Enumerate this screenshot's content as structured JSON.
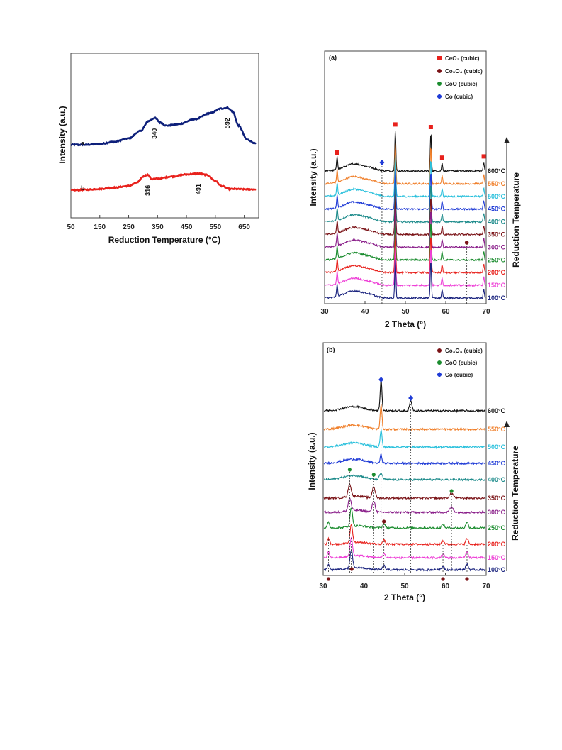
{
  "chart_data": [
    {
      "type": "line",
      "panel": "tpr",
      "xlabel": "Reduction Temperature (°C)",
      "ylabel": "Intensity (a.u.)",
      "xlim": [
        50,
        700
      ],
      "x_ticks": [
        "50",
        "150",
        "250",
        "350",
        "450",
        "550",
        "650"
      ],
      "x_tick_values": [
        50,
        150,
        250,
        350,
        450,
        550,
        650
      ],
      "series": [
        {
          "name": "a",
          "color": "#0d1f7a",
          "x": [
            50,
            100,
            150,
            200,
            250,
            290,
            320,
            340,
            360,
            380,
            420,
            480,
            530,
            570,
            592,
            610,
            630,
            660,
            690
          ],
          "y": [
            0.1,
            0.1,
            0.12,
            0.17,
            0.25,
            0.42,
            0.66,
            0.73,
            0.62,
            0.55,
            0.58,
            0.7,
            0.84,
            0.95,
            0.97,
            0.88,
            0.55,
            0.22,
            0.13
          ],
          "peaks": [
            {
              "x": 340,
              "label": "340"
            },
            {
              "x": 592,
              "label": "592"
            }
          ]
        },
        {
          "name": "b",
          "color": "#e8211c",
          "x": [
            50,
            100,
            150,
            200,
            250,
            280,
            300,
            316,
            330,
            350,
            400,
            450,
            491,
            520,
            550,
            570,
            600,
            650,
            690
          ],
          "y": [
            -0.1,
            -0.09,
            -0.07,
            -0.04,
            0.0,
            0.08,
            0.22,
            0.26,
            0.16,
            0.17,
            0.22,
            0.27,
            0.29,
            0.26,
            0.12,
            0.0,
            -0.07,
            -0.08,
            -0.08
          ],
          "peaks": [
            {
              "x": 316,
              "label": "316"
            },
            {
              "x": 491,
              "label": "491"
            }
          ]
        }
      ]
    },
    {
      "type": "line",
      "panel": "(a)",
      "xlabel": "2 Theta (°)",
      "ylabel": "Intensity (a.u.)",
      "right_label": "Reduction Temperature",
      "xlim": [
        30,
        70
      ],
      "x_ticks": [
        "30",
        "40",
        "50",
        "60",
        "70"
      ],
      "x_tick_values": [
        30,
        40,
        50,
        60,
        70
      ],
      "legend": [
        {
          "label": "CeO₂ (cubic)",
          "color": "#e8211c",
          "shape": "square"
        },
        {
          "label": "Co₃O₄ (cubic)",
          "color": "#7a1216",
          "shape": "circle"
        },
        {
          "label": "CoO (cubic)",
          "color": "#1a8c2e",
          "shape": "circle"
        },
        {
          "label": "Co (cubic)",
          "color": "#1f3bd6",
          "shape": "diamond"
        }
      ],
      "ceo2_peaks_2theta": [
        33.1,
        47.5,
        56.3,
        59.1,
        69.4
      ],
      "ceo2_peak_heights": [
        0.5,
        1.6,
        1.5,
        0.3,
        0.35
      ],
      "dashed_markers": [
        {
          "x": 44.2,
          "symbol": "diamond",
          "color": "#1f3bd6"
        },
        {
          "x": 65.2,
          "symbol": "circle",
          "color": "#7a1216"
        }
      ],
      "series": [
        {
          "name": "600°C",
          "color": "#111111"
        },
        {
          "name": "550°C",
          "color": "#f07f2a"
        },
        {
          "name": "500°C",
          "color": "#29c0dc"
        },
        {
          "name": "450°C",
          "color": "#1f3bd6"
        },
        {
          "name": "400°C",
          "color": "#1b8a8a"
        },
        {
          "name": "350°C",
          "color": "#7a1216"
        },
        {
          "name": "300°C",
          "color": "#8a1f8a"
        },
        {
          "name": "250°C",
          "color": "#1a8c2e"
        },
        {
          "name": "200°C",
          "color": "#e8211c"
        },
        {
          "name": "150°C",
          "color": "#ee3fd6"
        },
        {
          "name": "100°C",
          "color": "#1a237e"
        }
      ]
    },
    {
      "type": "line",
      "panel": "(b)",
      "xlabel": "2 Theta (°)",
      "ylabel": "Intensity (a.u.)",
      "right_label": "Reduction Temperature",
      "xlim": [
        30,
        70
      ],
      "x_ticks": [
        "30",
        "40",
        "50",
        "60",
        "70"
      ],
      "x_tick_values": [
        30,
        40,
        50,
        60,
        70
      ],
      "legend": [
        {
          "label": "Co₃O₄ (cubic)",
          "color": "#7a1216",
          "shape": "circle"
        },
        {
          "label": "CoO (cubic)",
          "color": "#1a8c2e",
          "shape": "circle"
        },
        {
          "label": "Co (cubic)",
          "color": "#1f3bd6",
          "shape": "diamond"
        }
      ],
      "series": [
        {
          "name": "600°C",
          "color": "#111111"
        },
        {
          "name": "550°C",
          "color": "#f07f2a"
        },
        {
          "name": "500°C",
          "color": "#29c0dc"
        },
        {
          "name": "450°C",
          "color": "#1f3bd6"
        },
        {
          "name": "400°C",
          "color": "#1b8a8a"
        },
        {
          "name": "350°C",
          "color": "#7a1216"
        },
        {
          "name": "300°C",
          "color": "#8a1f8a"
        },
        {
          "name": "250°C",
          "color": "#1a8c2e"
        },
        {
          "name": "200°C",
          "color": "#e8211c"
        },
        {
          "name": "150°C",
          "color": "#ee3fd6"
        },
        {
          "name": "100°C",
          "color": "#1a237e"
        }
      ]
    }
  ]
}
